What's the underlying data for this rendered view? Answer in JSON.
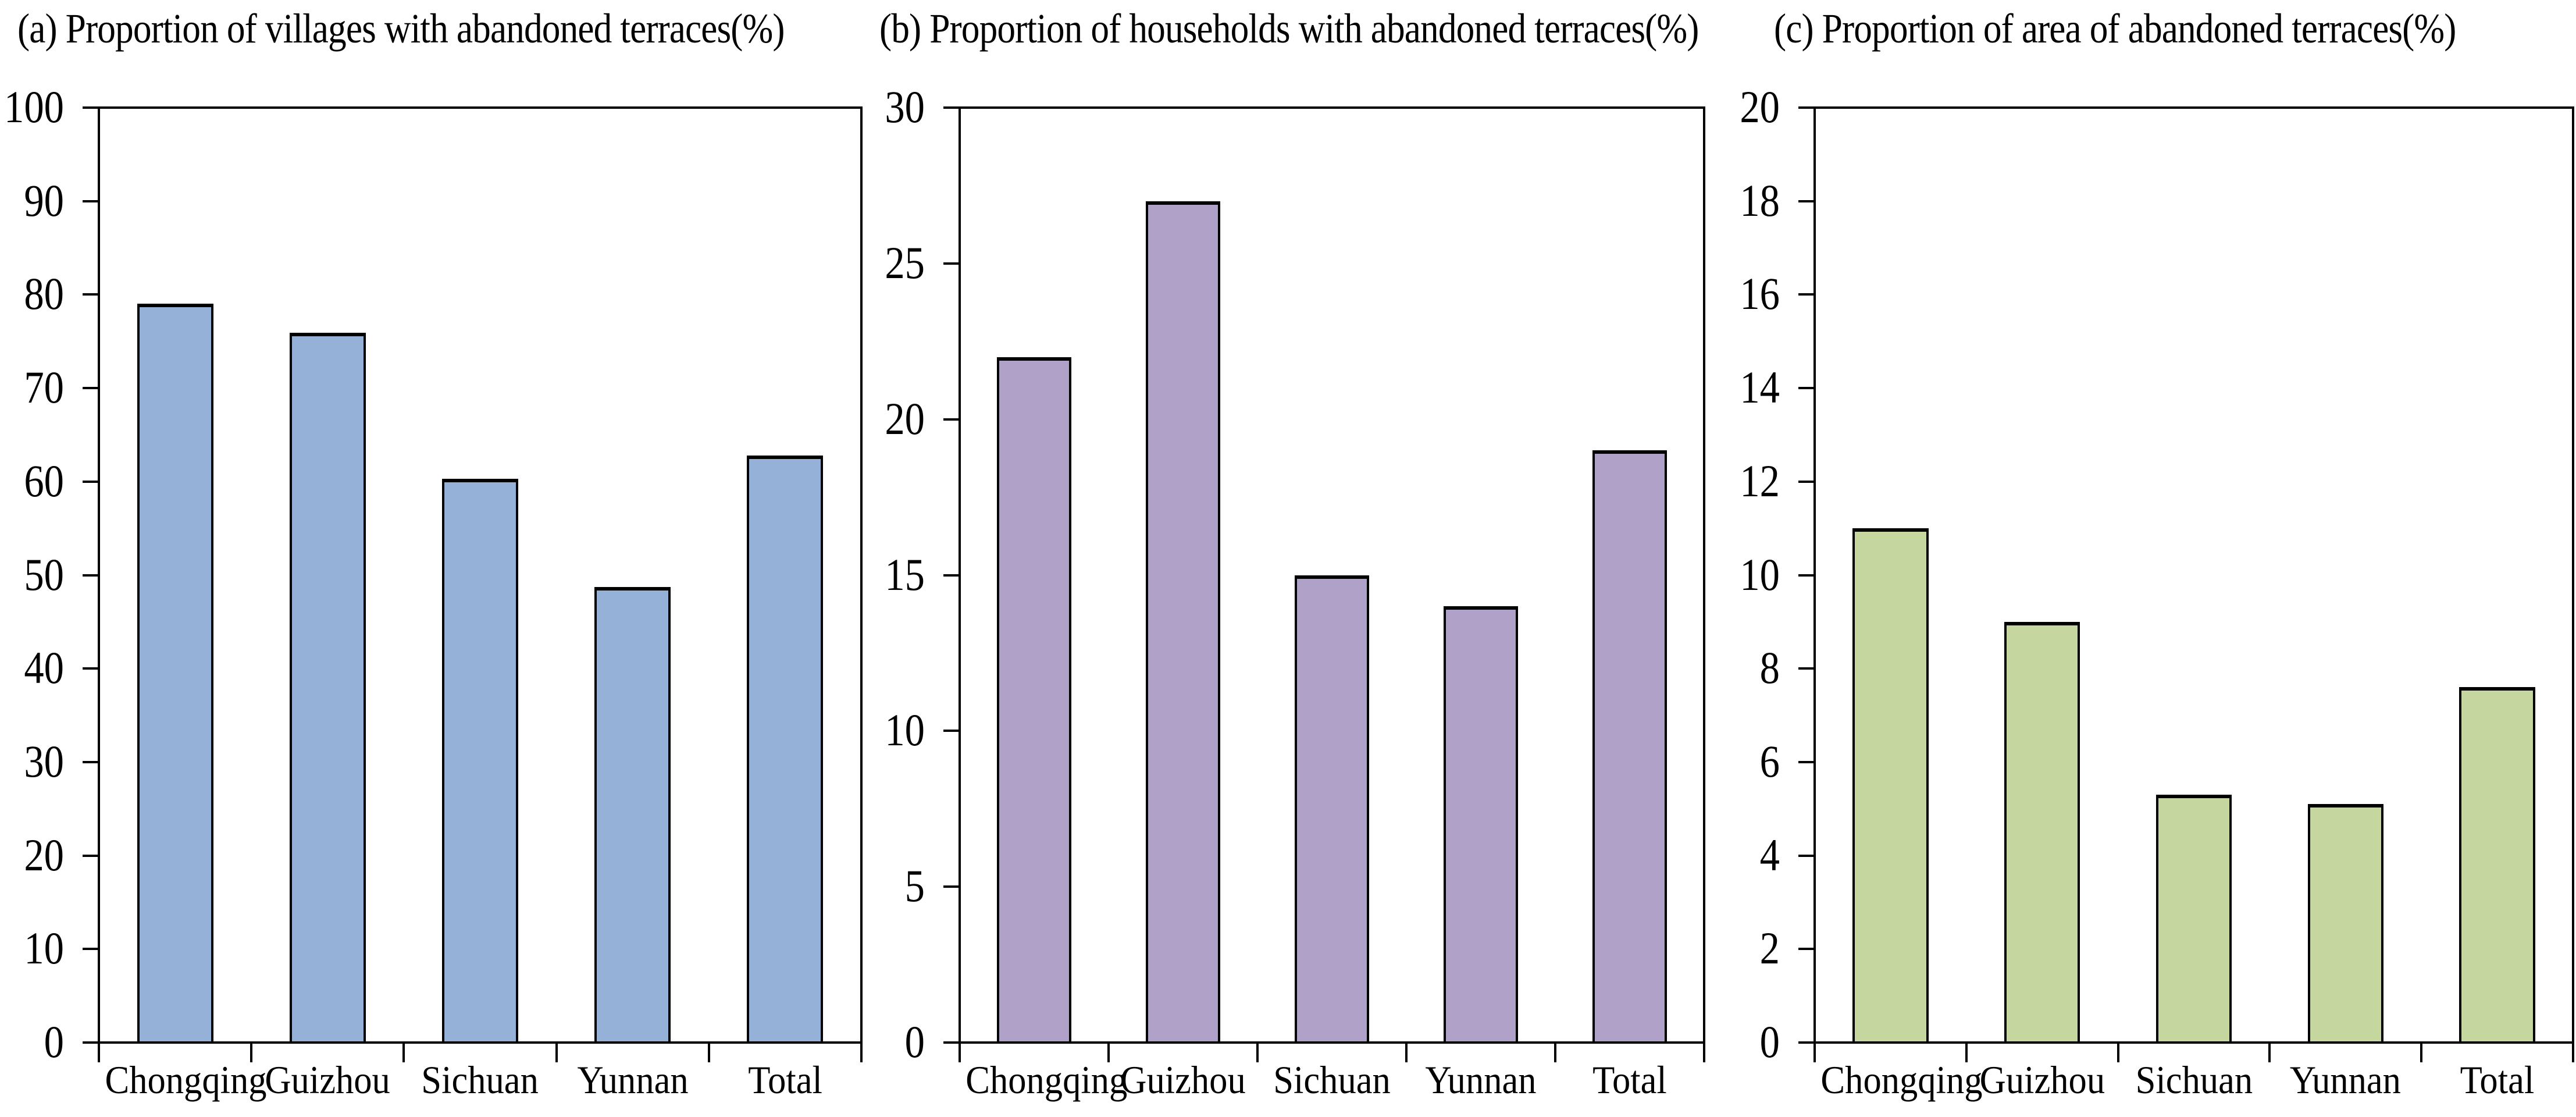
{
  "figure": {
    "background": "#ffffff",
    "text_color": "#000000",
    "axis_color": "#000000"
  },
  "chart_data": [
    {
      "id": "a",
      "type": "bar",
      "title": "(a) Proportion of villages with abandoned terraces(%)",
      "categories": [
        "Chongqing",
        "Guizhou",
        "Sichuan",
        "Yunnan",
        "Total"
      ],
      "values": [
        79.0,
        75.9,
        60.3,
        48.7,
        62.8
      ],
      "ylim": [
        0,
        100
      ],
      "yticks": [
        0,
        10,
        20,
        30,
        40,
        50,
        60,
        70,
        80,
        90,
        100
      ],
      "bar_fill": "#96B1D7",
      "bar_border": "#000000",
      "grid": false,
      "legend": "none",
      "xlabel": "",
      "ylabel": ""
    },
    {
      "id": "b",
      "type": "bar",
      "title": "(b) Proportion of households with abandoned terraces(%)",
      "categories": [
        "Chongqing",
        "Guizhou",
        "Sichuan",
        "Yunnan",
        "Total"
      ],
      "values": [
        22.0,
        27.0,
        15.0,
        14.0,
        19.0
      ],
      "ylim": [
        0,
        30
      ],
      "yticks": [
        0,
        5,
        10,
        15,
        20,
        25,
        30
      ],
      "bar_fill": "#B0A1C8",
      "bar_border": "#000000",
      "grid": false,
      "legend": "none",
      "xlabel": "",
      "ylabel": ""
    },
    {
      "id": "c",
      "type": "bar",
      "title": "(c) Proportion of area of abandoned terraces(%)",
      "categories": [
        "Chongqing",
        "Guizhou",
        "Sichuan",
        "Yunnan",
        "Total"
      ],
      "values": [
        11.0,
        9.0,
        5.3,
        5.1,
        7.6
      ],
      "ylim": [
        0,
        20
      ],
      "yticks": [
        0,
        2,
        4,
        6,
        8,
        10,
        12,
        14,
        16,
        18,
        20
      ],
      "bar_fill": "#C5D79E",
      "bar_border": "#000000",
      "grid": false,
      "legend": "none",
      "xlabel": "",
      "ylabel": ""
    }
  ]
}
